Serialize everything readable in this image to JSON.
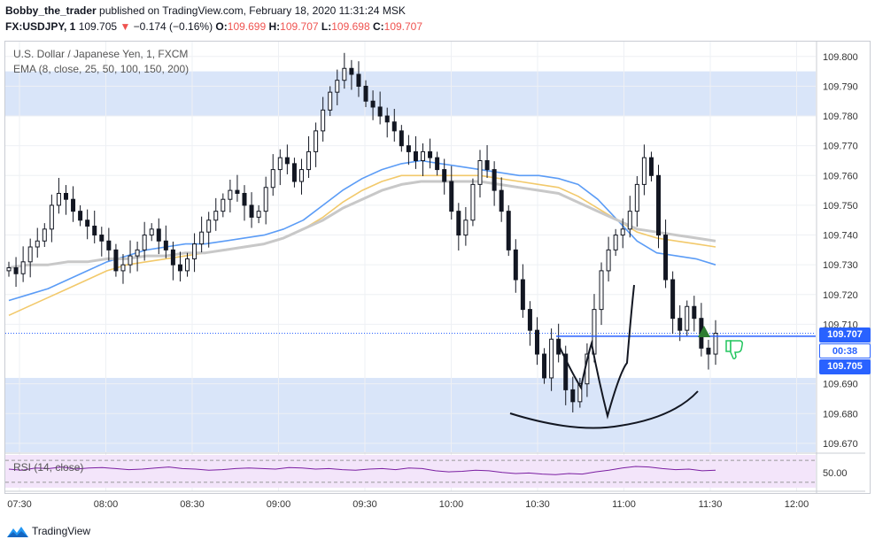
{
  "header": {
    "author": "Bobby_the_trader",
    "published_text": "published on TradingView.com, February 18, 2020 11:31:24 MSK",
    "symbol": "FX:USDJPY, 1",
    "last": "109.705",
    "change": "−0.174 (−0.16%)",
    "open_label": "O:",
    "open": "109.699",
    "high_label": "H:",
    "high": "109.707",
    "low_label": "L:",
    "low": "109.698",
    "close_label": "C:",
    "close": "109.707"
  },
  "legend": {
    "instrument": "U.S. Dollar / Japanese Yen, 1, FXCM",
    "ema": "EMA (8, close, 25, 50, 100, 150, 200)",
    "rsi": "RSI (14, close)"
  },
  "price_axis": {
    "ticks": [
      "109.800",
      "109.790",
      "109.780",
      "109.770",
      "109.760",
      "109.750",
      "109.740",
      "109.730",
      "109.720",
      "109.710",
      "109.690",
      "109.680",
      "109.670"
    ],
    "tag_high": "109.707",
    "tag_timer": "00:38",
    "tag_last": "109.705"
  },
  "rsi_axis": {
    "tick": "50.00"
  },
  "time_axis": {
    "ticks": [
      "07:30",
      "08:00",
      "08:30",
      "09:00",
      "09:30",
      "10:00",
      "10:30",
      "11:00",
      "11:30",
      "12:00"
    ]
  },
  "brand": "TradingView",
  "colors": {
    "up": "#131722",
    "down": "#131722",
    "zone": "#d9e5f9",
    "ema_fast": "#5b9cf6",
    "ema_mid": "#f2c96b",
    "ema_slow": "#c8c8c8",
    "level_line": "#2962ff",
    "rsi_bg": "#f3e5fa",
    "rsi_line": "#7b1fa2"
  },
  "chart_data": {
    "type": "candlestick",
    "title": "U.S. Dollar / Japanese Yen, 1, FXCM",
    "y_range": [
      109.667,
      109.805
    ],
    "zones": [
      [
        109.78,
        109.795
      ],
      [
        109.667,
        109.692
      ]
    ],
    "level_line": 109.706,
    "series": [
      {
        "name": "close",
        "values": [
          109.729,
          109.727,
          109.731,
          109.736,
          109.738,
          109.742,
          109.75,
          109.754,
          109.752,
          109.748,
          109.745,
          109.743,
          109.74,
          109.738,
          109.735,
          109.728,
          109.73,
          109.733,
          109.735,
          109.74,
          109.742,
          109.738,
          109.735,
          109.73,
          109.728,
          109.732,
          109.737,
          109.741,
          109.745,
          109.748,
          109.752,
          109.755,
          109.754,
          109.75,
          109.746,
          109.748,
          109.756,
          109.762,
          109.766,
          109.764,
          109.758,
          109.762,
          109.768,
          109.775,
          109.782,
          109.788,
          109.792,
          109.796,
          109.794,
          109.79,
          109.785,
          109.783,
          109.78,
          109.778,
          109.775,
          109.77,
          109.768,
          109.765,
          109.768,
          109.766,
          109.762,
          109.758,
          109.748,
          109.74,
          109.745,
          109.757,
          109.765,
          109.762,
          109.755,
          109.748,
          109.735,
          109.725,
          109.715,
          109.708,
          109.7,
          109.692,
          109.705,
          109.7,
          109.688,
          109.684,
          109.69,
          109.7,
          109.715,
          109.728,
          109.735,
          109.74,
          109.742,
          109.748,
          109.757,
          109.766,
          109.76,
          109.74,
          109.725,
          109.712,
          109.708,
          109.716,
          109.712,
          109.702,
          109.7,
          109.707
        ]
      },
      {
        "name": "EMA fast",
        "values": [
          109.718,
          109.72,
          109.722,
          109.725,
          109.728,
          109.731,
          109.733,
          109.735,
          109.736,
          109.737,
          109.737,
          109.738,
          109.739,
          109.74,
          109.742,
          109.745,
          109.75,
          109.755,
          109.759,
          109.762,
          109.764,
          109.765,
          109.764,
          109.763,
          109.762,
          109.761,
          109.76,
          109.76,
          109.759,
          109.757,
          109.752,
          109.745,
          109.738,
          109.734,
          109.733,
          109.732,
          109.73
        ]
      },
      {
        "name": "EMA mid",
        "values": [
          109.713,
          109.716,
          109.719,
          109.722,
          109.725,
          109.728,
          109.73,
          109.731,
          109.732,
          109.733,
          109.734,
          109.735,
          109.736,
          109.737,
          109.739,
          109.742,
          109.746,
          109.751,
          109.755,
          109.758,
          109.76,
          109.76,
          109.76,
          109.76,
          109.76,
          109.759,
          109.758,
          109.757,
          109.756,
          109.753,
          109.749,
          109.745,
          109.741,
          109.739,
          109.738,
          109.737,
          109.736
        ]
      },
      {
        "name": "EMA slow",
        "values": [
          109.729,
          109.73,
          109.73,
          109.731,
          109.731,
          109.732,
          109.732,
          109.733,
          109.733,
          109.734,
          109.734,
          109.735,
          109.736,
          109.737,
          109.739,
          109.742,
          109.745,
          109.749,
          109.752,
          109.755,
          109.757,
          109.758,
          109.758,
          109.758,
          109.758,
          109.757,
          109.756,
          109.755,
          109.754,
          109.751,
          109.748,
          109.745,
          109.742,
          109.741,
          109.74,
          109.739,
          109.738
        ]
      },
      {
        "name": "RSI",
        "values": [
          54,
          52,
          56,
          55,
          58,
          54,
          56,
          57,
          55,
          53,
          54,
          56,
          58,
          55,
          54,
          52,
          53,
          55,
          56,
          55,
          54,
          57,
          56,
          54,
          55,
          53,
          52,
          54,
          55,
          53,
          56,
          55,
          51,
          49,
          50,
          52,
          51,
          48,
          46,
          47,
          45,
          44,
          46,
          45,
          49,
          52,
          56,
          59,
          58,
          55,
          53,
          54,
          51,
          52
        ]
      }
    ]
  }
}
